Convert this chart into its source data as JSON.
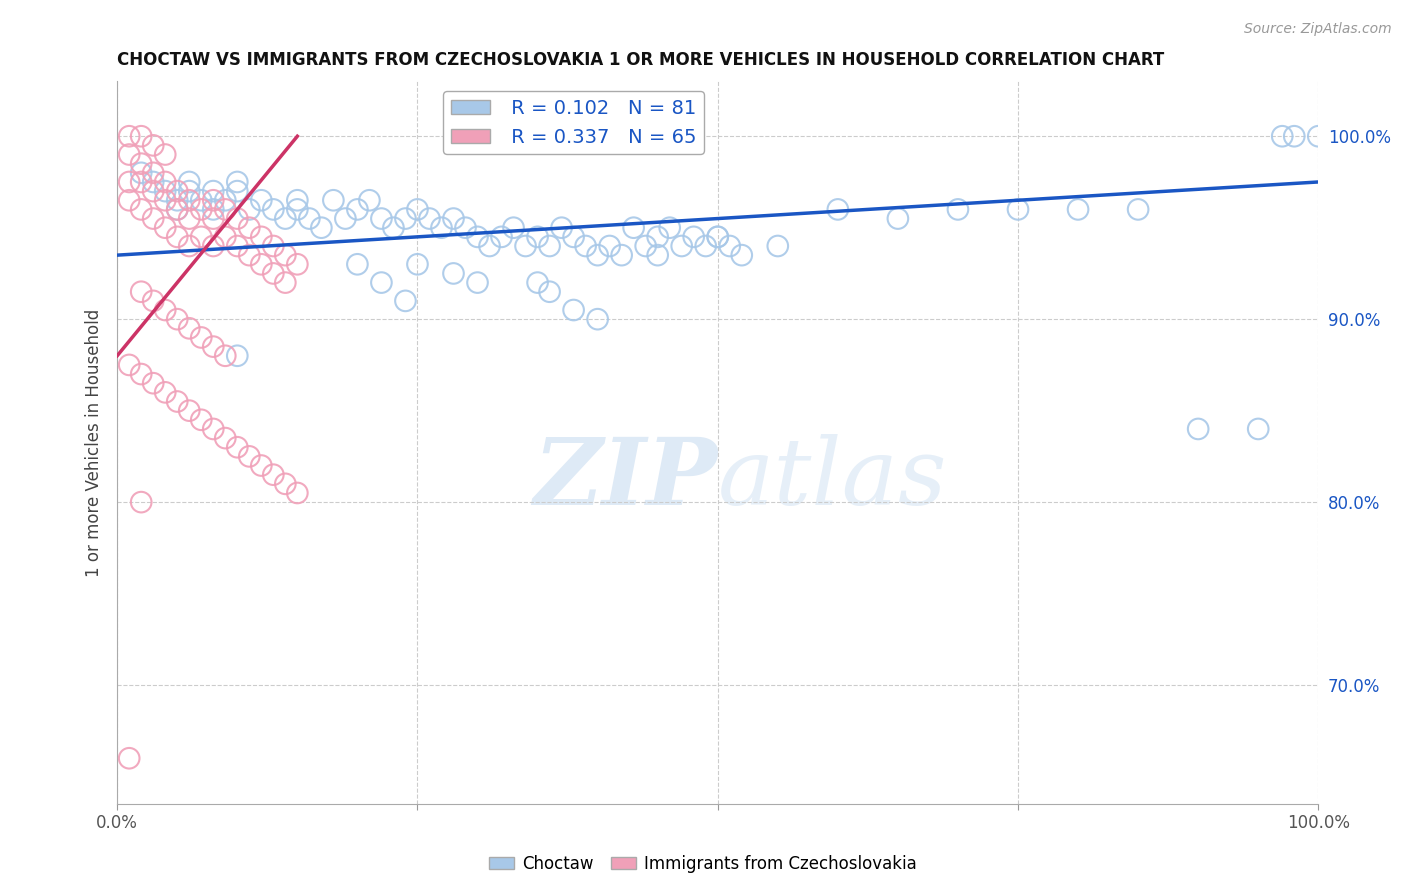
{
  "title": "CHOCTAW VS IMMIGRANTS FROM CZECHOSLOVAKIA 1 OR MORE VEHICLES IN HOUSEHOLD CORRELATION CHART",
  "source": "Source: ZipAtlas.com",
  "ylabel": "1 or more Vehicles in Household",
  "legend_label_blue": "Choctaw",
  "legend_label_pink": "Immigrants from Czechoslovakia",
  "R_blue": 0.102,
  "N_blue": 81,
  "R_pink": 0.337,
  "N_pink": 65,
  "blue_color": "#A8C8E8",
  "pink_color": "#F0A0B8",
  "trendline_blue": "#1A56C4",
  "trendline_pink": "#CC3366",
  "watermark_zip": "ZIP",
  "watermark_atlas": "atlas",
  "xlim": [
    0.0,
    1.0
  ],
  "ylim": [
    0.635,
    1.03
  ],
  "yticks": [
    0.7,
    0.8,
    0.9,
    1.0
  ],
  "ytick_labels": [
    "70.0%",
    "80.0%",
    "90.0%",
    "100.0%"
  ],
  "blue_trend_x0": 0.0,
  "blue_trend_y0": 0.935,
  "blue_trend_x1": 1.0,
  "blue_trend_y1": 0.975,
  "pink_trend_x0": 0.0,
  "pink_trend_y0": 0.88,
  "pink_trend_x1": 0.15,
  "pink_trend_y1": 1.0,
  "blue_scatter_x": [
    0.02,
    0.03,
    0.04,
    0.05,
    0.05,
    0.06,
    0.06,
    0.07,
    0.08,
    0.08,
    0.09,
    0.1,
    0.1,
    0.11,
    0.12,
    0.13,
    0.14,
    0.15,
    0.15,
    0.16,
    0.17,
    0.18,
    0.19,
    0.2,
    0.21,
    0.22,
    0.23,
    0.24,
    0.25,
    0.26,
    0.27,
    0.28,
    0.29,
    0.3,
    0.31,
    0.32,
    0.33,
    0.34,
    0.35,
    0.36,
    0.37,
    0.38,
    0.39,
    0.4,
    0.41,
    0.42,
    0.43,
    0.44,
    0.45,
    0.46,
    0.47,
    0.48,
    0.49,
    0.5,
    0.51,
    0.52,
    0.35,
    0.36,
    0.38,
    0.4,
    0.25,
    0.28,
    0.3,
    0.2,
    0.22,
    0.24,
    0.6,
    0.65,
    0.7,
    0.75,
    0.8,
    0.85,
    0.9,
    0.95,
    0.97,
    0.98,
    1.0,
    0.55,
    0.5,
    0.45,
    0.1
  ],
  "blue_scatter_y": [
    0.98,
    0.975,
    0.97,
    0.965,
    0.96,
    0.97,
    0.975,
    0.965,
    0.97,
    0.96,
    0.965,
    0.97,
    0.975,
    0.96,
    0.965,
    0.96,
    0.955,
    0.965,
    0.96,
    0.955,
    0.95,
    0.965,
    0.955,
    0.96,
    0.965,
    0.955,
    0.95,
    0.955,
    0.96,
    0.955,
    0.95,
    0.955,
    0.95,
    0.945,
    0.94,
    0.945,
    0.95,
    0.94,
    0.945,
    0.94,
    0.95,
    0.945,
    0.94,
    0.935,
    0.94,
    0.935,
    0.95,
    0.94,
    0.945,
    0.95,
    0.94,
    0.945,
    0.94,
    0.945,
    0.94,
    0.935,
    0.92,
    0.915,
    0.905,
    0.9,
    0.93,
    0.925,
    0.92,
    0.93,
    0.92,
    0.91,
    0.96,
    0.955,
    0.96,
    0.96,
    0.96,
    0.96,
    0.84,
    0.84,
    1.0,
    1.0,
    1.0,
    0.94,
    0.945,
    0.935,
    0.88
  ],
  "pink_scatter_x": [
    0.01,
    0.01,
    0.01,
    0.02,
    0.02,
    0.02,
    0.03,
    0.03,
    0.03,
    0.04,
    0.04,
    0.04,
    0.05,
    0.05,
    0.05,
    0.06,
    0.06,
    0.06,
    0.07,
    0.07,
    0.08,
    0.08,
    0.08,
    0.09,
    0.09,
    0.1,
    0.1,
    0.11,
    0.11,
    0.12,
    0.12,
    0.13,
    0.13,
    0.14,
    0.14,
    0.15,
    0.02,
    0.03,
    0.04,
    0.05,
    0.06,
    0.07,
    0.08,
    0.09,
    0.01,
    0.02,
    0.03,
    0.04,
    0.05,
    0.06,
    0.07,
    0.08,
    0.09,
    0.1,
    0.11,
    0.12,
    0.13,
    0.14,
    0.15,
    0.01,
    0.02,
    0.03,
    0.04,
    0.02,
    0.01
  ],
  "pink_scatter_y": [
    0.99,
    0.975,
    0.965,
    0.985,
    0.975,
    0.96,
    0.98,
    0.97,
    0.955,
    0.975,
    0.965,
    0.95,
    0.97,
    0.96,
    0.945,
    0.965,
    0.955,
    0.94,
    0.96,
    0.945,
    0.965,
    0.955,
    0.94,
    0.96,
    0.945,
    0.955,
    0.94,
    0.95,
    0.935,
    0.945,
    0.93,
    0.94,
    0.925,
    0.935,
    0.92,
    0.93,
    0.915,
    0.91,
    0.905,
    0.9,
    0.895,
    0.89,
    0.885,
    0.88,
    0.875,
    0.87,
    0.865,
    0.86,
    0.855,
    0.85,
    0.845,
    0.84,
    0.835,
    0.83,
    0.825,
    0.82,
    0.815,
    0.81,
    0.805,
    1.0,
    1.0,
    0.995,
    0.99,
    0.8,
    0.66
  ]
}
